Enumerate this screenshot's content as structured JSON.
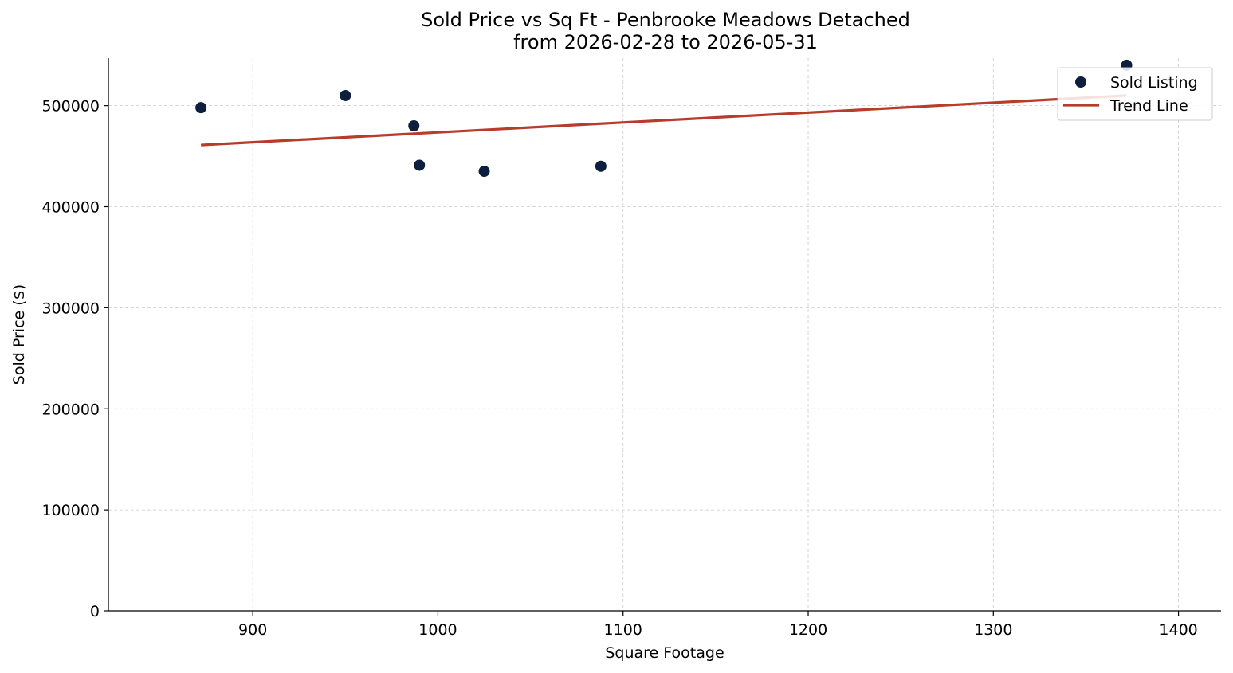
{
  "chart_data": {
    "type": "scatter",
    "title": "Sold Price vs Sq Ft - Penbrooke Meadows Detached\nfrom 2026-02-28 to 2026-05-31",
    "xlabel": "Square Footage",
    "ylabel": "Sold Price ($)",
    "xlim": [
      822,
      1423
    ],
    "ylim": [
      0,
      547000
    ],
    "xticks": [
      900,
      1000,
      1100,
      1200,
      1300,
      1400
    ],
    "yticks": [
      0,
      100000,
      200000,
      300000,
      400000,
      500000
    ],
    "grid": true,
    "legend_position": "top-right",
    "series": [
      {
        "name": "Sold Listing",
        "kind": "scatter",
        "color": "#0d1f3c",
        "points": [
          {
            "x": 872,
            "y": 498000
          },
          {
            "x": 950,
            "y": 510000
          },
          {
            "x": 987,
            "y": 480000
          },
          {
            "x": 990,
            "y": 441000
          },
          {
            "x": 1025,
            "y": 435000
          },
          {
            "x": 1088,
            "y": 440000
          },
          {
            "x": 1372,
            "y": 540000
          }
        ]
      },
      {
        "name": "Trend Line",
        "kind": "line",
        "color": "#b83c2a",
        "points": [
          {
            "x": 872,
            "y": 461000
          },
          {
            "x": 1372,
            "y": 510000
          }
        ]
      }
    ]
  }
}
